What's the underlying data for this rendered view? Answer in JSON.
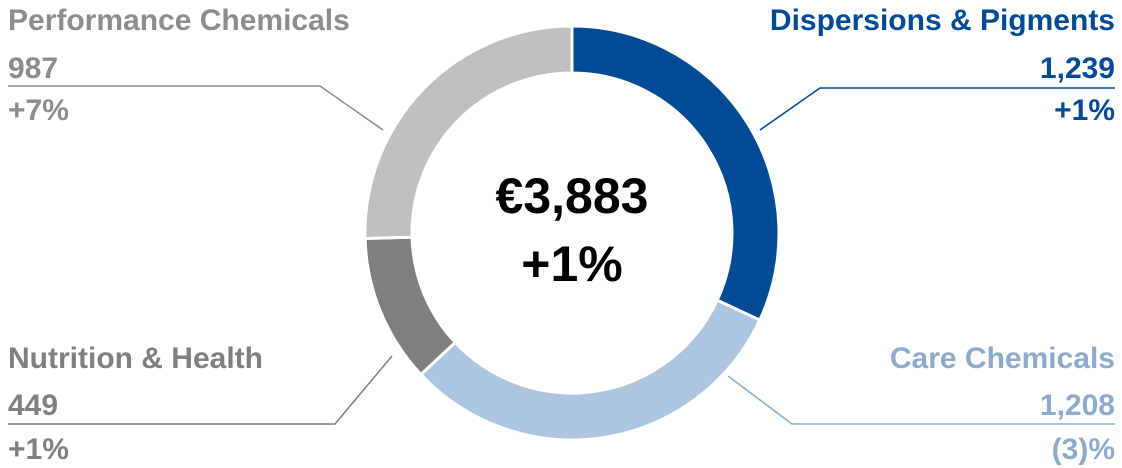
{
  "chart_data": {
    "type": "donut",
    "categories": [
      "Dispersions & Pigments",
      "Care Chemicals",
      "Nutrition & Health",
      "Performance Chemicals"
    ],
    "values": [
      1239,
      1208,
      449,
      987
    ],
    "value_labels": [
      "1,239",
      "1,208",
      "449",
      "987"
    ],
    "changes": [
      "+1%",
      "(3)%",
      "+1%",
      "+7%"
    ],
    "colors": [
      "#004b93",
      "#adc5de",
      "#7f7f7f",
      "#bfbfbf"
    ],
    "label_colors": [
      "#004b93",
      "#8eaacb",
      "#7f7f7f",
      "#8c8c8c"
    ],
    "center_title": "€3,883",
    "center_subtitle": "+1%"
  }
}
